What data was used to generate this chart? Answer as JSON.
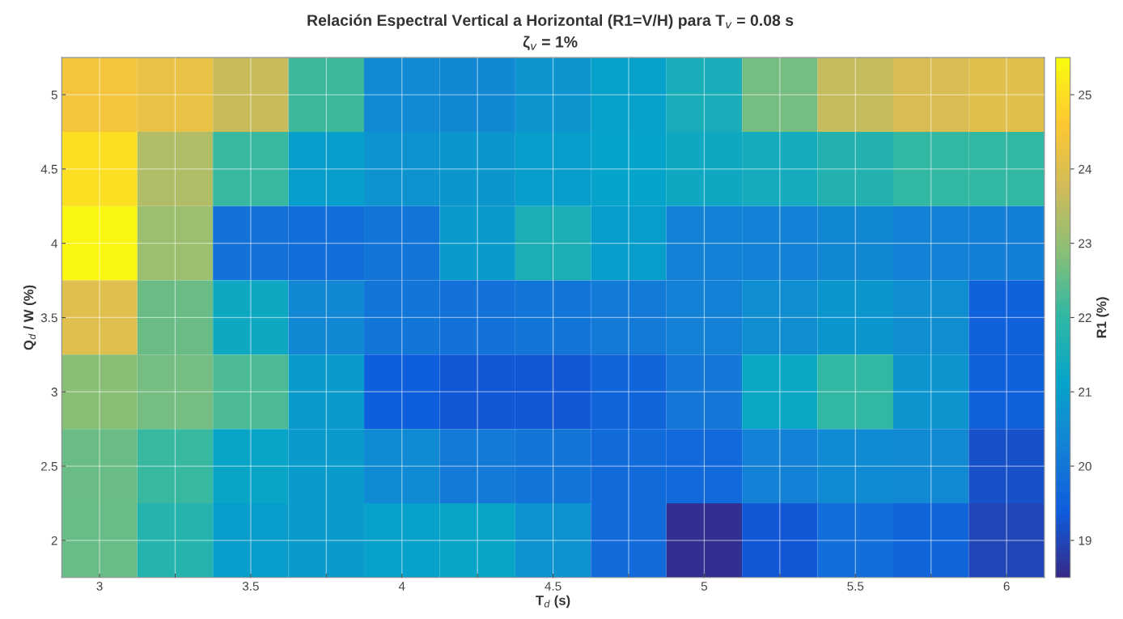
{
  "chart_data": {
    "type": "heatmap",
    "title": "Relación Espectral Vertical a Horizontal (R1=V/H) para T$_{v}$ = 0.08 s",
    "subtitle": "ζ$_{v}$ = 1%",
    "xlabel": "T$_{d}$ (s)",
    "ylabel": "Q$_{d}$ / W (%)",
    "clabel": "R1 (%)",
    "categories": [
      "3",
      null,
      "3.5",
      null,
      "4",
      null,
      "4.5",
      null,
      "5",
      null,
      "5.5",
      null,
      "6"
    ],
    "y_categories": [
      "5",
      "4.5",
      "4",
      "3.5",
      "3",
      "2.5",
      "2"
    ],
    "cells": [
      [
        24.4,
        24.2,
        23.65,
        22.15,
        20.45,
        20.4,
        20.75,
        21.05,
        21.52,
        22.7,
        23.6,
        23.9,
        24.05
      ],
      [
        25.0,
        23.35,
        22.1,
        20.97,
        20.7,
        20.8,
        20.98,
        21.15,
        21.3,
        21.45,
        21.75,
        22.03,
        22.05
      ],
      [
        25.4,
        23.1,
        19.9,
        19.8,
        19.97,
        20.9,
        21.6,
        20.98,
        20.3,
        20.3,
        20.4,
        20.3,
        20.2
      ],
      [
        24.0,
        22.6,
        21.3,
        20.4,
        19.95,
        19.9,
        20.0,
        20.1,
        20.3,
        20.6,
        20.8,
        20.6,
        19.5
      ],
      [
        22.9,
        22.7,
        22.3,
        20.9,
        19.45,
        19.3,
        19.3,
        19.6,
        20.05,
        21.25,
        22.05,
        20.75,
        19.5
      ],
      [
        22.6,
        22.1,
        21.2,
        20.9,
        20.5,
        20.1,
        20.0,
        19.75,
        19.7,
        20.3,
        20.5,
        20.45,
        19.2
      ],
      [
        22.55,
        21.8,
        20.95,
        20.9,
        21.05,
        21.2,
        20.7,
        19.75,
        18.6,
        19.3,
        19.8,
        19.6,
        19.0
      ]
    ],
    "clim": [
      18.5,
      25.5
    ],
    "cticks": [
      19,
      20,
      21,
      22,
      23,
      24,
      25
    ],
    "grid": true
  }
}
